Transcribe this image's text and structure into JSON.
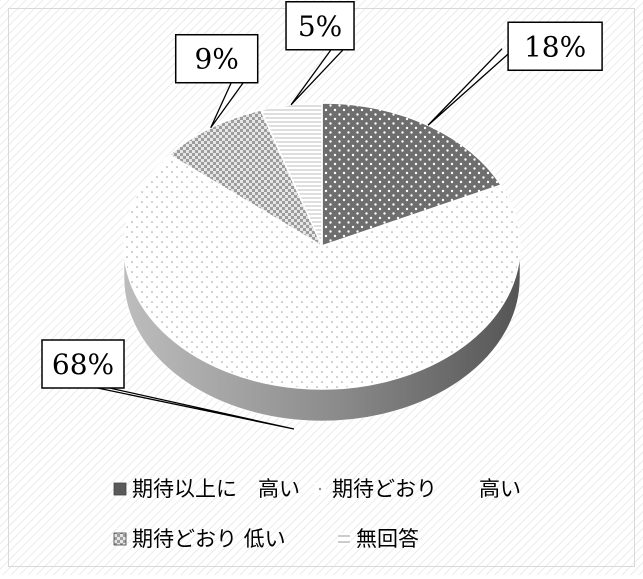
{
  "chart_data": {
    "type": "pie",
    "style": "3d-pie",
    "categories": [
      "期待以上に　高い",
      "期待どおり　　高い",
      "期待どおり 低い",
      "無回答"
    ],
    "values": [
      18,
      68,
      9,
      5
    ],
    "data_labels": [
      "18%",
      "68%",
      "9%",
      "5%"
    ],
    "legend_position": "bottom",
    "legend": [
      {
        "label": "期待以上に　高い",
        "pattern": "dark-dots",
        "color": "#6b6b6b"
      },
      {
        "label": "期待どおり　　高い",
        "pattern": "light-dots",
        "color": "#ffffff"
      },
      {
        "label": "期待どおり 低い",
        "pattern": "checker",
        "color": "#9a9a9a"
      },
      {
        "label": "無回答",
        "pattern": "horizontal-lines",
        "color": "#ffffff"
      }
    ],
    "title": "",
    "background": "diagonal-hatch"
  }
}
